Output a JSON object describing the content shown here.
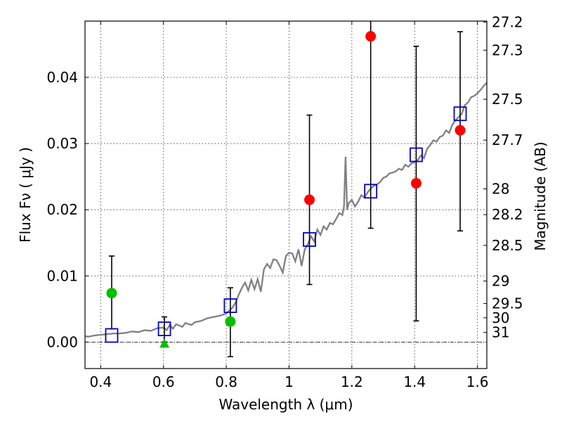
{
  "chart_data": {
    "type": "scatter",
    "xlabel": "Wavelength  λ (μm)",
    "ylabel": "Flux  Fν  ( μJy )",
    "y2label": "Magnitude (AB)",
    "xlim": [
      0.35,
      1.63
    ],
    "ylim": [
      -0.004,
      0.0485
    ],
    "grid": true,
    "x_ticks": [
      0.4,
      0.6,
      0.8,
      1.0,
      1.2,
      1.4,
      1.6
    ],
    "x_tick_labels": [
      "0.4",
      "0.6",
      "0.8",
      "1",
      "1.2",
      "1.4",
      "1.6"
    ],
    "y_ticks": [
      0.0,
      0.01,
      0.02,
      0.03,
      0.04
    ],
    "y_tick_labels": [
      "0.00",
      "0.01",
      "0.02",
      "0.03",
      "0.04"
    ],
    "mag_ticks": [
      {
        "label": "27.2",
        "flux": 0.04836
      },
      {
        "label": "27.3",
        "flux": 0.04411
      },
      {
        "label": "27.5",
        "flux": 0.03669
      },
      {
        "label": "27.7",
        "flux": 0.03052
      },
      {
        "label": "28",
        "flux": 0.02315
      },
      {
        "label": "28.2",
        "flux": 0.01926
      },
      {
        "label": "28.5",
        "flux": 0.01461
      },
      {
        "label": "29",
        "flux": 0.00922
      },
      {
        "label": "29.5",
        "flux": 0.00582
      },
      {
        "label": "30",
        "flux": 0.00367
      },
      {
        "label": "31",
        "flux": 0.00146
      }
    ],
    "error_bars": [
      {
        "x": 0.435,
        "low": 0.002,
        "high": 0.013
      },
      {
        "x": 0.603,
        "low": 0.0,
        "high": 0.0038
      },
      {
        "x": 0.813,
        "low": -0.0022,
        "high": 0.0082
      },
      {
        "x": 1.065,
        "low": 0.0087,
        "high": 0.0343
      },
      {
        "x": 1.26,
        "low": 0.0172,
        "high": 0.0488
      },
      {
        "x": 1.405,
        "low": 0.0032,
        "high": 0.0447
      },
      {
        "x": 1.545,
        "low": 0.0168,
        "high": 0.0469
      }
    ],
    "detections": [
      {
        "x": 1.065,
        "y": 0.0215
      },
      {
        "x": 1.26,
        "y": 0.0462
      },
      {
        "x": 1.405,
        "y": 0.024
      },
      {
        "x": 1.545,
        "y": 0.032
      }
    ],
    "optical_points": [
      {
        "x": 0.435,
        "y": 0.0074
      },
      {
        "x": 0.813,
        "y": 0.0031
      }
    ],
    "upper_limit_points": [
      {
        "x": 0.603,
        "y": -0.0002
      }
    ],
    "model_points": [
      {
        "x": 0.435,
        "y": 0.001
      },
      {
        "x": 0.603,
        "y": 0.002
      },
      {
        "x": 0.813,
        "y": 0.0055
      },
      {
        "x": 1.065,
        "y": 0.0155
      },
      {
        "x": 1.26,
        "y": 0.0228
      },
      {
        "x": 1.405,
        "y": 0.0283
      },
      {
        "x": 1.545,
        "y": 0.0345
      }
    ],
    "model_spectrum": {
      "x": [
        0.35,
        0.36,
        0.38,
        0.4,
        0.42,
        0.44,
        0.46,
        0.48,
        0.5,
        0.52,
        0.54,
        0.56,
        0.58,
        0.6,
        0.61,
        0.62,
        0.63,
        0.64,
        0.65,
        0.66,
        0.67,
        0.68,
        0.69,
        0.7,
        0.72,
        0.74,
        0.76,
        0.78,
        0.8,
        0.81,
        0.82,
        0.83,
        0.84,
        0.85,
        0.86,
        0.87,
        0.88,
        0.89,
        0.9,
        0.91,
        0.92,
        0.93,
        0.94,
        0.95,
        0.96,
        0.97,
        0.98,
        0.99,
        1.0,
        1.01,
        1.02,
        1.03,
        1.04,
        1.05,
        1.06,
        1.07,
        1.08,
        1.09,
        1.1,
        1.11,
        1.12,
        1.13,
        1.14,
        1.15,
        1.16,
        1.17,
        1.175,
        1.18,
        1.185,
        1.19,
        1.2,
        1.21,
        1.22,
        1.23,
        1.24,
        1.25,
        1.26,
        1.27,
        1.28,
        1.29,
        1.3,
        1.31,
        1.32,
        1.33,
        1.34,
        1.35,
        1.36,
        1.37,
        1.38,
        1.39,
        1.4,
        1.41,
        1.42,
        1.43,
        1.44,
        1.45,
        1.46,
        1.47,
        1.48,
        1.49,
        1.5,
        1.51,
        1.52,
        1.53,
        1.54,
        1.55,
        1.56,
        1.57,
        1.58,
        1.59,
        1.6,
        1.61,
        1.62,
        1.63
      ],
      "y": [
        0.0009,
        0.0008,
        0.001,
        0.0011,
        0.0012,
        0.0013,
        0.0013,
        0.0014,
        0.0016,
        0.0015,
        0.0018,
        0.0017,
        0.0021,
        0.0022,
        0.0018,
        0.0026,
        0.002,
        0.0027,
        0.0025,
        0.0023,
        0.0029,
        0.0027,
        0.0026,
        0.003,
        0.0032,
        0.0036,
        0.0038,
        0.004,
        0.0043,
        0.0048,
        0.0052,
        0.006,
        0.0072,
        0.0082,
        0.009,
        0.0078,
        0.0094,
        0.008,
        0.0095,
        0.0076,
        0.011,
        0.0118,
        0.0112,
        0.0125,
        0.0124,
        0.0115,
        0.0105,
        0.013,
        0.0135,
        0.0134,
        0.0122,
        0.014,
        0.0115,
        0.014,
        0.0148,
        0.016,
        0.0152,
        0.017,
        0.0162,
        0.0175,
        0.017,
        0.018,
        0.0178,
        0.0186,
        0.0195,
        0.0192,
        0.0205,
        0.028,
        0.02,
        0.021,
        0.0215,
        0.0205,
        0.0212,
        0.0222,
        0.0218,
        0.0226,
        0.0232,
        0.0236,
        0.0238,
        0.0242,
        0.0248,
        0.025,
        0.0255,
        0.0256,
        0.0258,
        0.0262,
        0.026,
        0.0268,
        0.0265,
        0.027,
        0.0272,
        0.0275,
        0.0282,
        0.0278,
        0.0292,
        0.0298,
        0.0305,
        0.0303,
        0.031,
        0.0312,
        0.032,
        0.0316,
        0.0328,
        0.0335,
        0.034,
        0.0345,
        0.0358,
        0.0362,
        0.037,
        0.0372,
        0.0376,
        0.0381,
        0.0387,
        0.0392
      ]
    },
    "colors": {
      "spectrum": "#808080",
      "detection": "#ff0000",
      "optical": "#00bf00",
      "model_box": "#0000c8",
      "error_bar": "#000000",
      "grid": "#333333"
    }
  }
}
